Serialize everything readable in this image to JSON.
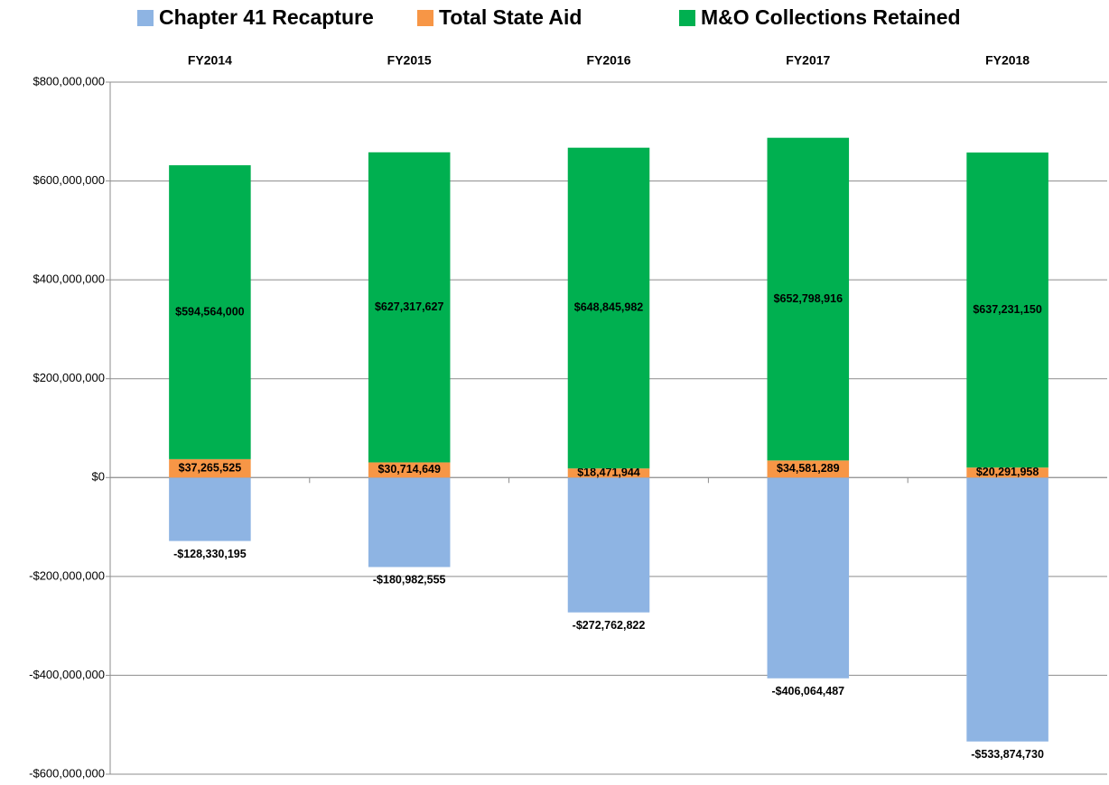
{
  "chart_data": {
    "type": "stacked_bar",
    "categories": [
      "FY2014",
      "FY2015",
      "FY2016",
      "FY2017",
      "FY2018"
    ],
    "series": [
      {
        "name": "Chapter 41 Recapture",
        "color": "#8eb4e3",
        "values": [
          -128330195,
          -180982555,
          -272762822,
          -406064487,
          -533874730
        ],
        "value_labels": [
          "-$128,330,195",
          "-$180,982,555",
          "-$272,762,822",
          "-$406,064,487",
          "-$533,874,730"
        ]
      },
      {
        "name": "Total State Aid",
        "color": "#f79646",
        "values": [
          37265525,
          30714649,
          18471944,
          34581289,
          20291958
        ],
        "value_labels": [
          "$37,265,525",
          "$30,714,649",
          "$18,471,944",
          "$34,581,289",
          "$20,291,958"
        ]
      },
      {
        "name": "M&O Collections Retained",
        "color": "#00b050",
        "values": [
          594564000,
          627317627,
          648845982,
          652798916,
          637231150
        ],
        "value_labels": [
          "$594,564,000",
          "$627,317,627",
          "$648,845,982",
          "$652,798,916",
          "$637,231,150"
        ]
      }
    ],
    "ylim": [
      -600000000,
      800000000
    ],
    "yticks": [
      {
        "value": -600000000,
        "label": "-$600,000,000"
      },
      {
        "value": -400000000,
        "label": "-$400,000,000"
      },
      {
        "value": -200000000,
        "label": "-$200,000,000"
      },
      {
        "value": 0,
        "label": "$0"
      },
      {
        "value": 200000000,
        "label": "$200,000,000"
      },
      {
        "value": 400000000,
        "label": "$400,000,000"
      },
      {
        "value": 600000000,
        "label": "$600,000,000"
      },
      {
        "value": 800000000,
        "label": "$800,000,000"
      }
    ],
    "grid": true,
    "legend": "top"
  }
}
